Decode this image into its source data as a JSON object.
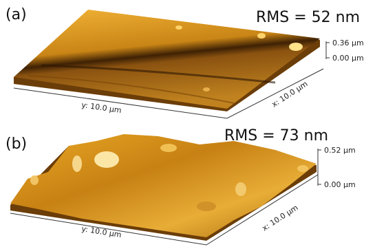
{
  "panels": [
    {
      "label": "(a)",
      "rms": "RMS = 52 nm",
      "x_axis": "x: 10.0 µm",
      "y_axis": "y: 10.0 µm",
      "z_ticks": [
        "0.36 µm",
        "0.00 µm"
      ]
    },
    {
      "label": "(b)",
      "rms": "RMS = 73 nm",
      "x_axis": "x: 10.0 µm",
      "y_axis": "y: 10.0 µm",
      "z_ticks": [
        "0.52 µm",
        "0.00 µm"
      ]
    }
  ]
}
